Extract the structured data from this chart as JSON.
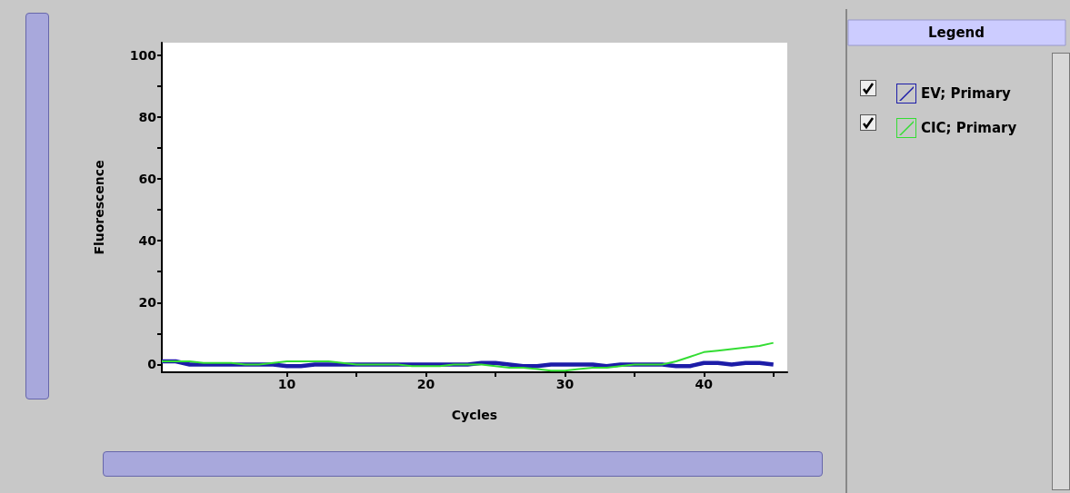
{
  "chart_data": {
    "type": "line",
    "xlabel": "Cycles",
    "ylabel": "Fluorescence",
    "legend_title": "Legend",
    "x": [
      1,
      2,
      3,
      4,
      5,
      6,
      7,
      8,
      9,
      10,
      11,
      12,
      13,
      14,
      15,
      16,
      17,
      18,
      19,
      20,
      21,
      22,
      23,
      24,
      25,
      26,
      27,
      28,
      29,
      30,
      31,
      32,
      33,
      34,
      35,
      36,
      37,
      38,
      39,
      40,
      41,
      42,
      43,
      44,
      45
    ],
    "series": [
      {
        "name": "EV; Primary",
        "color": "#1c1ca8",
        "values": [
          1,
          1,
          0,
          0,
          0,
          0,
          0,
          0,
          0,
          -0.5,
          -0.5,
          0,
          0,
          0,
          0,
          0,
          0,
          0,
          0,
          0,
          0,
          0,
          0,
          0.5,
          0.5,
          0,
          -0.5,
          -0.5,
          0,
          0,
          0,
          0,
          -0.5,
          0,
          0,
          0,
          0,
          -0.5,
          -0.5,
          0.5,
          0.5,
          0,
          0.5,
          0.5,
          0
        ]
      },
      {
        "name": "CIC; Primary",
        "color": "#33dd33",
        "values": [
          1,
          1,
          1,
          0.5,
          0.5,
          0.5,
          0,
          0,
          0.5,
          1,
          1,
          1,
          1,
          0.5,
          0,
          0,
          0,
          0,
          -0.5,
          -0.5,
          -0.5,
          0,
          0,
          0,
          -0.5,
          -1,
          -1,
          -1.5,
          -2,
          -2,
          -1.5,
          -1,
          -1,
          -0.5,
          0,
          0,
          0,
          1,
          2.5,
          4,
          4.5,
          5,
          5.5,
          6,
          7
        ]
      }
    ],
    "xlim": [
      1,
      46
    ],
    "xticks": [
      10,
      {
        "value": 15,
        "label": null
      },
      20,
      {
        "value": 25,
        "label": null
      },
      30,
      {
        "value": 35,
        "label": null
      },
      40,
      {
        "value": 45,
        "label": null
      }
    ],
    "ylim": [
      -2.5,
      104
    ],
    "yticks": [
      0,
      {
        "value": 10,
        "label": null
      },
      20,
      {
        "value": 30,
        "label": null
      },
      40,
      {
        "value": 50,
        "label": null
      },
      60,
      {
        "value": 70,
        "label": null
      },
      80,
      {
        "value": 90,
        "label": null
      },
      100
    ],
    "grid": false,
    "legend": "right",
    "marker": "none",
    "line_style": "solid"
  }
}
